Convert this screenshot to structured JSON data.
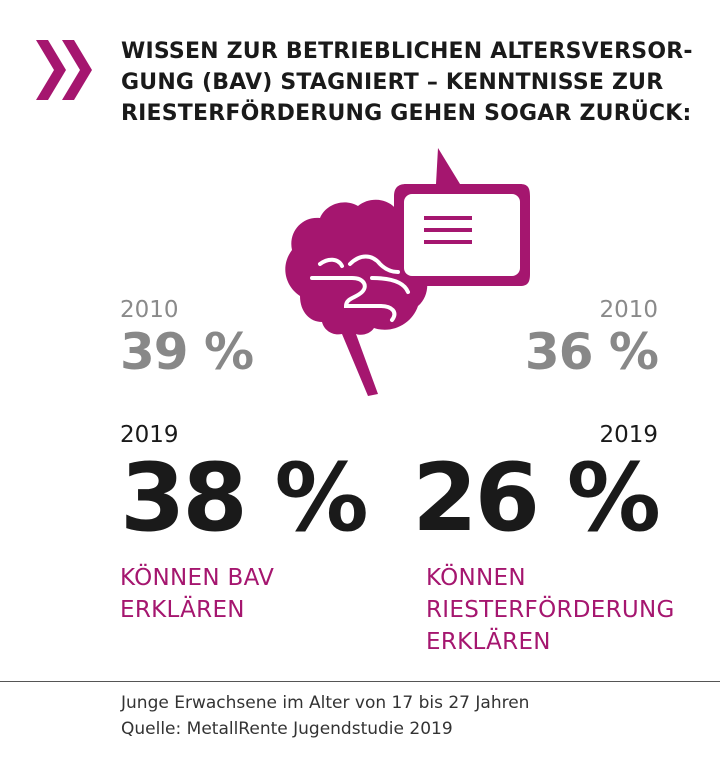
{
  "colors": {
    "accent": "#a5166f",
    "text": "#1a1a1a",
    "muted": "#8a8a8a"
  },
  "icons": {
    "chevron": "double-chevron-right-icon",
    "illustration": "brain-with-speech-bubble-icon"
  },
  "title": {
    "lines": [
      "WISSEN ZUR BETRIEBLICHEN ALTERSVERSOR-",
      "GUNG (BAV) STAGNIERT – KENNTNISSE ZUR",
      "RIESTERFÖRDERUNG GEHEN SOGAR ZURÜCK:"
    ]
  },
  "stats": {
    "bav": {
      "year_old": "2010",
      "value_old": "39 %",
      "year_new": "2019",
      "value_new": "38 %",
      "caption_lines": [
        "KÖNNEN BAV",
        "ERKLÄREN"
      ]
    },
    "riester": {
      "year_old": "2010",
      "value_old": "36 %",
      "year_new": "2019",
      "value_new": "26 %",
      "caption_lines": [
        "KÖNNEN",
        "RIESTERFÖRDERUNG",
        "ERKLÄREN"
      ]
    }
  },
  "footer": {
    "lines": [
      "Junge Erwachsene im Alter von 17 bis 27 Jahren",
      "Quelle: MetallRente Jugendstudie 2019"
    ]
  }
}
